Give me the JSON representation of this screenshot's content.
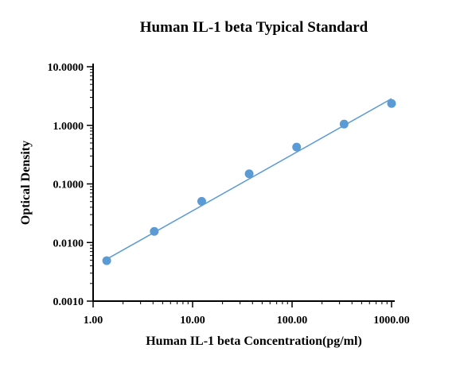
{
  "chart_data": {
    "type": "scatter",
    "title": "Human IL-1 beta Typical Standard",
    "xlabel": "Human IL-1 beta Concentration(pg/ml)",
    "ylabel": "Optical Density",
    "x_scale": "log",
    "y_scale": "log",
    "xlim": [
      1,
      1000
    ],
    "ylim": [
      0.001,
      10
    ],
    "x_ticks": [
      1,
      10,
      100,
      1000
    ],
    "x_tick_labels": [
      "1.00",
      "10.00",
      "100.00",
      "1000.00"
    ],
    "y_ticks": [
      0.001,
      0.01,
      0.1,
      1,
      10
    ],
    "y_tick_labels": [
      "0.0010",
      "0.0100",
      "0.1000",
      "1.0000",
      "10.0000"
    ],
    "grid": false,
    "series": [
      {
        "color": "#5b9bd5",
        "x": [
          1.37,
          4.12,
          12.35,
          37.04,
          111.1,
          333.3,
          1000
        ],
        "y": [
          0.0049,
          0.0155,
          0.0505,
          0.149,
          0.425,
          1.05,
          2.36
        ]
      }
    ],
    "fit_line": {
      "color": "#5b9bd5",
      "x": [
        1.37,
        1000
      ],
      "y": [
        0.0052,
        2.85
      ]
    }
  }
}
